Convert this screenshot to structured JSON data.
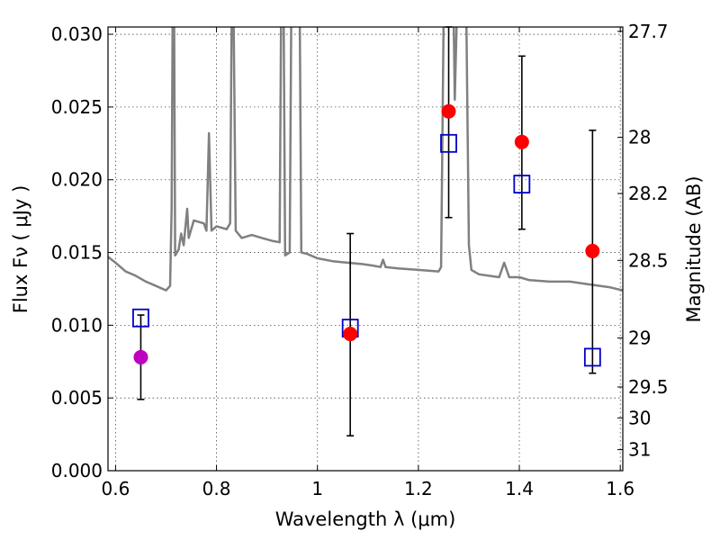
{
  "chart_data": {
    "type": "scatter",
    "title": "",
    "xlabel": "Wavelength  λ (μm)",
    "ylabel": "Flux  Fν  ( μJy )",
    "ylabel_right": "Magnitude (AB)",
    "xlim": [
      0.585,
      1.605
    ],
    "ylim": [
      0.0,
      0.0305
    ],
    "grid": true,
    "x_ticks": [
      {
        "value": 0.6,
        "label": "0.6"
      },
      {
        "value": 0.8,
        "label": "0.8"
      },
      {
        "value": 1.0,
        "label": "1"
      },
      {
        "value": 1.2,
        "label": "1.2"
      },
      {
        "value": 1.4,
        "label": "1.4"
      },
      {
        "value": 1.6,
        "label": "1.6"
      }
    ],
    "y_ticks": [
      {
        "value": 0.0,
        "label": "0.000"
      },
      {
        "value": 0.005,
        "label": "0.005"
      },
      {
        "value": 0.01,
        "label": "0.010"
      },
      {
        "value": 0.015,
        "label": "0.015"
      },
      {
        "value": 0.02,
        "label": "0.020"
      },
      {
        "value": 0.025,
        "label": "0.025"
      },
      {
        "value": 0.03,
        "label": "0.030"
      }
    ],
    "right_ticks": [
      {
        "mag": 27.7,
        "label": "27.7"
      },
      {
        "mag": 28,
        "label": "28"
      },
      {
        "mag": 28.2,
        "label": "28.2"
      },
      {
        "mag": 28.5,
        "label": "28.5"
      },
      {
        "mag": 29,
        "label": "29"
      },
      {
        "mag": 29.5,
        "label": "29.5"
      },
      {
        "mag": 30,
        "label": "30"
      },
      {
        "mag": 31,
        "label": "31"
      }
    ],
    "observed": [
      {
        "x": 0.65,
        "y": 0.0078,
        "yerr_low": 0.0049,
        "yerr_high": 0.0107,
        "color": "#bf00bf"
      },
      {
        "x": 1.065,
        "y": 0.0094,
        "yerr_low": 0.0024,
        "yerr_high": 0.0163,
        "color": "#ff0000"
      },
      {
        "x": 1.26,
        "y": 0.0247,
        "yerr_low": 0.0174,
        "yerr_high": 0.0305,
        "color": "#ff0000"
      },
      {
        "x": 1.405,
        "y": 0.0226,
        "yerr_low": 0.0166,
        "yerr_high": 0.0285,
        "color": "#ff0000"
      },
      {
        "x": 1.545,
        "y": 0.0151,
        "yerr_low": 0.0067,
        "yerr_high": 0.0234,
        "color": "#ff0000"
      }
    ],
    "model_points": [
      {
        "x": 0.65,
        "y": 0.0105
      },
      {
        "x": 1.065,
        "y": 0.0098
      },
      {
        "x": 1.26,
        "y": 0.0225
      },
      {
        "x": 1.405,
        "y": 0.0197
      },
      {
        "x": 1.545,
        "y": 0.0078
      }
    ],
    "spectrum": [
      [
        0.585,
        0.0147
      ],
      [
        0.6,
        0.0143
      ],
      [
        0.62,
        0.0137
      ],
      [
        0.64,
        0.0134
      ],
      [
        0.66,
        0.013
      ],
      [
        0.68,
        0.0127
      ],
      [
        0.7,
        0.0124
      ],
      [
        0.708,
        0.0127
      ],
      [
        0.711,
        0.018
      ],
      [
        0.713,
        0.031
      ],
      [
        0.716,
        0.031
      ],
      [
        0.718,
        0.0148
      ],
      [
        0.725,
        0.0152
      ],
      [
        0.73,
        0.0163
      ],
      [
        0.735,
        0.0155
      ],
      [
        0.742,
        0.018
      ],
      [
        0.745,
        0.016
      ],
      [
        0.755,
        0.0172
      ],
      [
        0.765,
        0.0171
      ],
      [
        0.775,
        0.017
      ],
      [
        0.78,
        0.0165
      ],
      [
        0.785,
        0.0232
      ],
      [
        0.79,
        0.0165
      ],
      [
        0.8,
        0.0168
      ],
      [
        0.81,
        0.0167
      ],
      [
        0.82,
        0.0166
      ],
      [
        0.827,
        0.017
      ],
      [
        0.83,
        0.031
      ],
      [
        0.834,
        0.031
      ],
      [
        0.838,
        0.0165
      ],
      [
        0.85,
        0.016
      ],
      [
        0.87,
        0.0162
      ],
      [
        0.89,
        0.016
      ],
      [
        0.91,
        0.0158
      ],
      [
        0.925,
        0.0157
      ],
      [
        0.928,
        0.031
      ],
      [
        0.933,
        0.031
      ],
      [
        0.936,
        0.0148
      ],
      [
        0.945,
        0.015
      ],
      [
        0.948,
        0.031
      ],
      [
        0.965,
        0.031
      ],
      [
        0.968,
        0.015
      ],
      [
        0.98,
        0.0149
      ],
      [
        1.0,
        0.0146
      ],
      [
        1.03,
        0.0144
      ],
      [
        1.06,
        0.0143
      ],
      [
        1.09,
        0.0142
      ],
      [
        1.11,
        0.0141
      ],
      [
        1.125,
        0.014
      ],
      [
        1.13,
        0.0145
      ],
      [
        1.135,
        0.014
      ],
      [
        1.16,
        0.0139
      ],
      [
        1.2,
        0.0138
      ],
      [
        1.24,
        0.0137
      ],
      [
        1.245,
        0.014
      ],
      [
        1.25,
        0.031
      ],
      [
        1.27,
        0.031
      ],
      [
        1.272,
        0.0255
      ],
      [
        1.276,
        0.031
      ],
      [
        1.295,
        0.031
      ],
      [
        1.3,
        0.0155
      ],
      [
        1.305,
        0.0138
      ],
      [
        1.32,
        0.0135
      ],
      [
        1.36,
        0.0133
      ],
      [
        1.37,
        0.0143
      ],
      [
        1.38,
        0.0133
      ],
      [
        1.4,
        0.0133
      ],
      [
        1.42,
        0.0131
      ],
      [
        1.46,
        0.013
      ],
      [
        1.5,
        0.013
      ],
      [
        1.54,
        0.0128
      ],
      [
        1.58,
        0.0126
      ],
      [
        1.605,
        0.0124
      ]
    ]
  }
}
